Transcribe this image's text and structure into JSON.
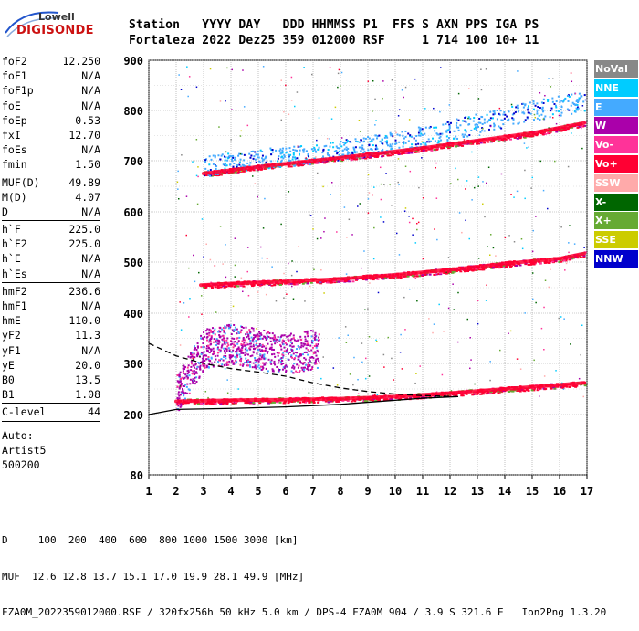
{
  "logo": {
    "top": "Lowell",
    "bottom": "DIGISONDE"
  },
  "header": {
    "labels": "Station   YYYY DAY   DDD HHMMSS P1  FFS S AXN PPS IGA PS",
    "values": "Fortaleza 2022 Dez25 359 012000 RSF     1 714 100 10+ 11"
  },
  "params": [
    {
      "name": "foF2",
      "value": "12.250"
    },
    {
      "name": "foF1",
      "value": "N/A"
    },
    {
      "name": "foF1p",
      "value": "N/A"
    },
    {
      "name": "foE",
      "value": "N/A"
    },
    {
      "name": "foEp",
      "value": "0.53"
    },
    {
      "name": "fxI",
      "value": "12.70"
    },
    {
      "name": "foEs",
      "value": "N/A"
    },
    {
      "name": "fmin",
      "value": "1.50"
    },
    {
      "name": "MUF(D)",
      "value": "49.89"
    },
    {
      "name": "M(D)",
      "value": "4.07"
    },
    {
      "name": "D",
      "value": "N/A"
    },
    {
      "name": "h`F",
      "value": "225.0"
    },
    {
      "name": "h`F2",
      "value": "225.0"
    },
    {
      "name": "h`E",
      "value": "N/A"
    },
    {
      "name": "h`Es",
      "value": "N/A"
    },
    {
      "name": "hmF2",
      "value": "236.6"
    },
    {
      "name": "hmF1",
      "value": "N/A"
    },
    {
      "name": "hmE",
      "value": "110.0"
    },
    {
      "name": "yF2",
      "value": "11.3"
    },
    {
      "name": "yF1",
      "value": "N/A"
    },
    {
      "name": "yE",
      "value": "20.0"
    },
    {
      "name": "B0",
      "value": "13.5"
    },
    {
      "name": "B1",
      "value": "1.08"
    },
    {
      "name": "C-level",
      "value": "44"
    }
  ],
  "auto": [
    "Auto:",
    "Artist5",
    "500200"
  ],
  "legend": [
    {
      "label": "NoVal",
      "color": "#888888"
    },
    {
      "label": "NNE",
      "color": "#00ccff"
    },
    {
      "label": "E",
      "color": "#44aaff"
    },
    {
      "label": "W",
      "color": "#aa00aa"
    },
    {
      "label": "Vo-",
      "color": "#ff3399"
    },
    {
      "label": "Vo+",
      "color": "#ff0033"
    },
    {
      "label": "SSW",
      "color": "#ffaaaa"
    },
    {
      "label": "X-",
      "color": "#006600"
    },
    {
      "label": "X+",
      "color": "#66aa33"
    },
    {
      "label": "SSE",
      "color": "#cccc00"
    },
    {
      "label": "NNW",
      "color": "#0000cc"
    }
  ],
  "chart_data": {
    "type": "scatter",
    "xlim": [
      1,
      17
    ],
    "ylim": [
      80,
      900
    ],
    "x_ticks": [
      "1",
      "2",
      "3",
      "4",
      "5",
      "6",
      "7",
      "8",
      "9",
      "10",
      "11",
      "12",
      "13",
      "14",
      "15",
      "16",
      "17"
    ],
    "y_ticks": [
      "80",
      "200",
      "300",
      "400",
      "500",
      "600",
      "700",
      "800",
      "900"
    ],
    "grid": true,
    "traces": [
      {
        "name": "F2 trace",
        "color": "#ff0033",
        "x": [
          2.0,
          4.0,
          6.0,
          8.0,
          10.0,
          12.0,
          14.0,
          16.0,
          16.9
        ],
        "y": [
          226,
          228,
          229,
          231,
          235,
          242,
          250,
          258,
          262
        ]
      },
      {
        "name": "2nd hop",
        "color": "#ff0033",
        "x": [
          2.9,
          4.0,
          6.0,
          8.0,
          10.0,
          12.0,
          14.0,
          16.0,
          16.9
        ],
        "y": [
          455,
          458,
          462,
          467,
          475,
          485,
          497,
          507,
          517
        ]
      },
      {
        "name": "3rd hop",
        "color": "#ff0033",
        "x": [
          3.0,
          5.0,
          7.0,
          9.0,
          11.0,
          13.0,
          15.0,
          16.9
        ],
        "y": [
          675,
          688,
          700,
          712,
          725,
          740,
          755,
          775
        ]
      },
      {
        "name": "E-direction echoes",
        "color": "#44aaff",
        "x": [
          3.0,
          5.0,
          7.0,
          9.0,
          11.0,
          13.0,
          15.0,
          16.9
        ],
        "y": [
          690,
          705,
          715,
          730,
          750,
          775,
          800,
          820
        ]
      },
      {
        "name": "Spread F",
        "color": "#aa00aa",
        "x": [
          2.0,
          3.0,
          4.0,
          5.0,
          6.0,
          7.0,
          7.2
        ],
        "y": [
          240,
          330,
          340,
          330,
          320,
          330,
          320
        ]
      }
    ],
    "profile_lines": [
      {
        "style": "solid",
        "x": [
          1.0,
          2.0,
          4.0,
          6.0,
          8.0,
          10.0,
          11.0,
          12.3
        ],
        "y": [
          200,
          210,
          212,
          215,
          220,
          228,
          232,
          235
        ]
      },
      {
        "style": "dashed",
        "x": [
          1.0,
          2.0,
          3.0,
          4.0,
          5.0,
          6.0,
          7.0,
          8.0,
          9.0,
          10.0,
          11.0,
          12.3
        ],
        "y": [
          340,
          315,
          300,
          290,
          283,
          275,
          262,
          252,
          245,
          240,
          237,
          235
        ]
      }
    ]
  },
  "footer": {
    "line1": "D     100  200  400  600  800 1000 1500 3000 [km]",
    "line2": "MUF  12.6 12.8 13.7 15.1 17.0 19.9 28.1 49.9 [MHz]",
    "line3": "FZA0M_2022359012000.RSF / 320fx256h 50 kHz 5.0 km / DPS-4 FZA0M 904 / 3.9 S 321.6 E   Ion2Png 1.3.20"
  }
}
